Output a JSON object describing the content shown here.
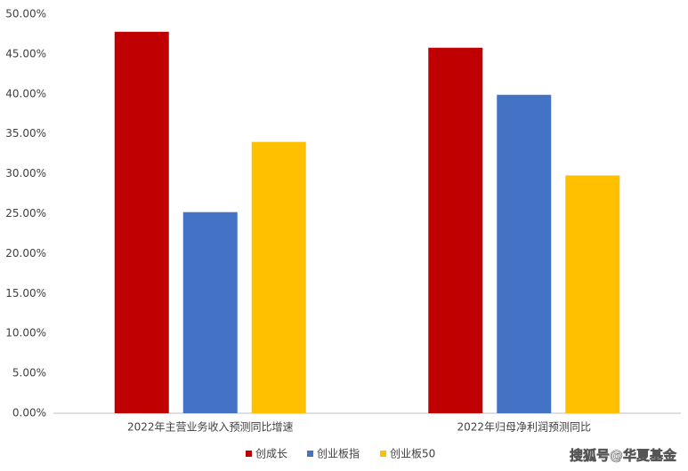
{
  "chart_data": {
    "type": "bar",
    "categories": [
      "2022年主营业务收入预测同比增速",
      "2022年归母净利润预测同比"
    ],
    "series": [
      {
        "name": "创成长",
        "color": "#c00000",
        "values": [
          47.8,
          45.8
        ]
      },
      {
        "name": "创业板指",
        "color": "#4472c4",
        "values": [
          25.2,
          39.9
        ]
      },
      {
        "name": "创业板50",
        "color": "#ffc000",
        "values": [
          34.0,
          29.8
        ]
      }
    ],
    "ylim": [
      0,
      50
    ],
    "yticks": [
      {
        "value": 0,
        "label": "0.00%"
      },
      {
        "value": 5,
        "label": "5.00%"
      },
      {
        "value": 10,
        "label": "10.00%"
      },
      {
        "value": 15,
        "label": "15.00%"
      },
      {
        "value": 20,
        "label": "20.00%"
      },
      {
        "value": 25,
        "label": "25.00%"
      },
      {
        "value": 30,
        "label": "30.00%"
      },
      {
        "value": 35,
        "label": "35.00%"
      },
      {
        "value": 40,
        "label": "40.00%"
      },
      {
        "value": 45,
        "label": "45.00%"
      },
      {
        "value": 50,
        "label": "50.00%"
      }
    ],
    "grid": false,
    "legend": "bottom",
    "watermark": "搜狐号@华夏基金"
  }
}
